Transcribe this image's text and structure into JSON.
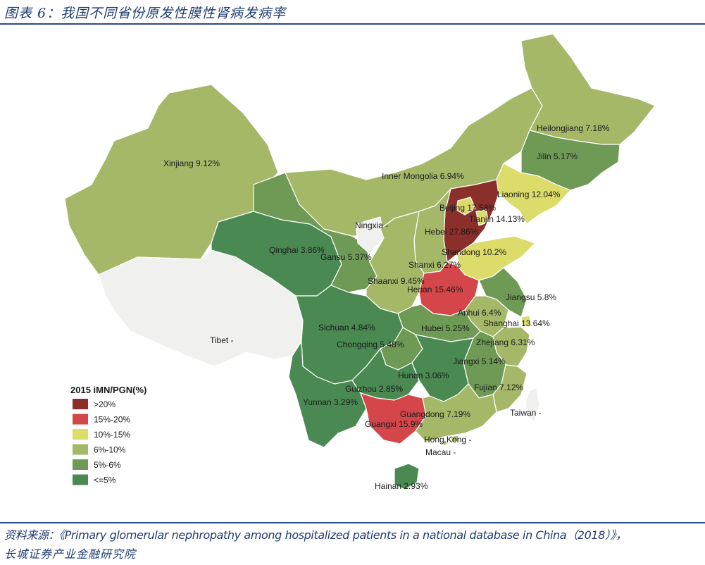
{
  "figure_title": "图表 6：我国不同省份原发性膜性肾病发病率",
  "colors": {
    "gt20": "#8b2f2a",
    "c15_20": "#d4464a",
    "c10_15": "#dcdc6a",
    "c6_10": "#a4b868",
    "c5_6": "#6f9a56",
    "le5": "#4a8a52",
    "no_data": "#f0f0ee"
  },
  "legend": {
    "title": "2015 iMN/PGN(%)",
    "items": [
      {
        "label": ">20%",
        "color": "#8b2f2a"
      },
      {
        "label": "15%-20%",
        "color": "#d4464a"
      },
      {
        "label": "10%-15%",
        "color": "#dcdc6a"
      },
      {
        "label": "6%-10%",
        "color": "#a4b868"
      },
      {
        "label": "5%-6%",
        "color": "#6f9a56"
      },
      {
        "label": "<=5%",
        "color": "#4a8a52"
      }
    ]
  },
  "regions": {
    "xinjiang": "Xinjiang 9.12%",
    "tibet": "Tibet -",
    "qinghai": "Qinghai 3.86%",
    "gansu": "Gansu 5.37%",
    "ningxia": "Ningxia -",
    "inner_mongolia": "Inner Mongolia 6.94%",
    "heilongjiang": "Heilongjiang 7.18%",
    "jilin": "Jilin 5.17%",
    "liaoning": "Liaoning 12.04%",
    "beijing": "Beijing 17.58%",
    "tianjin": "Tianjin 14.13%",
    "hebei": "Hebei 27.86%",
    "shandong": "Shandong 10.2%",
    "shanxi": "Shanxi 6.27%",
    "shaanxi": "Shaanxi 9.45%",
    "henan": "Henan 15.46%",
    "jiangsu": "Jiangsu 5.8%",
    "anhui": "Anhui 6.4%",
    "shanghai": "Shanghai 13.64%",
    "sichuan": "Sichuan 4.84%",
    "chongqing": "Chongqing 5.48%",
    "hubei": "Hubei 5.25%",
    "zhejiang": "Zhejiang 6.31%",
    "jiangxi": "Jiangxi 5.14%",
    "hunan": "Hunan 3.06%",
    "fujian": "Fujian 7.12%",
    "guizhou": "Guizhou 2.85%",
    "yunnan": "Yunnan 3.29%",
    "guangdong": "Guangdong 7.19%",
    "guangxi": "Guangxi 15.9%",
    "taiwan": "Taiwan -",
    "hong_kong": "Hong Kong -",
    "macau": "Macau -",
    "hainan": "Hainan 2.93%"
  },
  "source_line1": "资料来源：《Primary glomerular nephropathy among hospitalized patients in a national database in China（2018）》，",
  "source_line2": "长城证券产业金融研究院"
}
